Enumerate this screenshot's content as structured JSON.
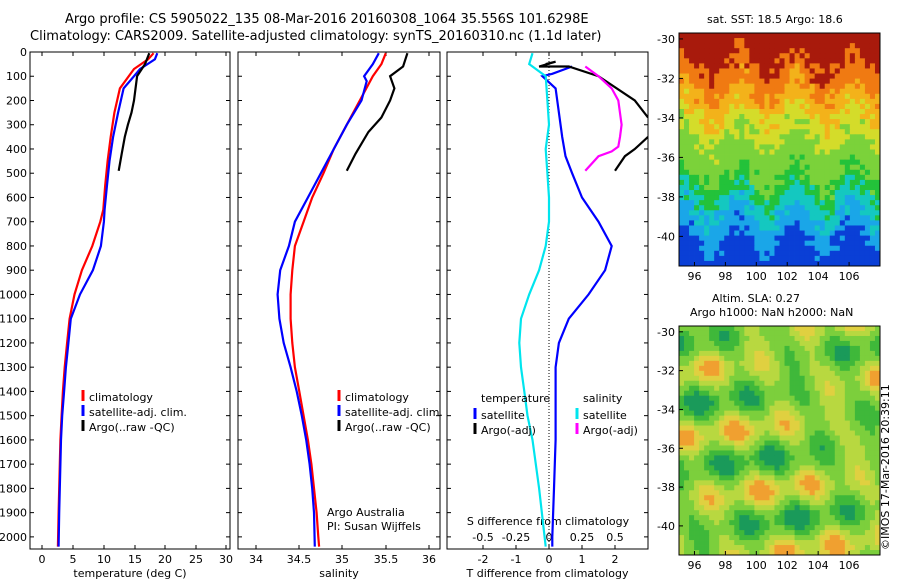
{
  "header": {
    "line1": "Argo profile: CS 5905022_135 08-Mar-2016 20160308_1064 35.556S 101.6298E",
    "line2": "Climatology: CARS2009. Satellite-adjusted climatology: synTS_20160310.nc (1.1d later)"
  },
  "colors": {
    "clim": "#ff0000",
    "sat": "#0000ff",
    "argo": "#000000",
    "cyan": "#00e5ee",
    "magenta": "#ff00ff"
  },
  "chart_data": [
    {
      "type": "line",
      "xlabel": "temperature (deg C)",
      "ylabel": "",
      "xlim": [
        0,
        31
      ],
      "ylim": [
        2050,
        0
      ],
      "xticks": [
        "0",
        "5",
        "10",
        "15",
        "20",
        "25",
        "30"
      ],
      "yticks": [
        "0",
        "100",
        "200",
        "300",
        "400",
        "500",
        "600",
        "700",
        "800",
        "900",
        "1000",
        "1100",
        "1200",
        "1300",
        "1400",
        "1500",
        "1600",
        "1700",
        "1800",
        "1900",
        "2000"
      ],
      "legend": [
        "climatology",
        "satellite-adj. clim.",
        "Argo(..raw -QC)"
      ],
      "series": [
        {
          "name": "climatology",
          "color": "clim",
          "x": [
            18.2,
            17.3,
            15.0,
            12.7,
            11.8,
            11.2,
            10.7,
            10.3,
            10.0,
            9.5,
            8.2,
            6.5,
            5.3,
            4.5,
            4.1,
            3.7,
            3.4,
            3.2,
            3.0,
            2.9,
            2.8,
            2.7,
            2.6
          ],
          "y": [
            5,
            30,
            70,
            150,
            250,
            350,
            450,
            550,
            650,
            700,
            800,
            900,
            1000,
            1100,
            1200,
            1300,
            1400,
            1500,
            1600,
            1700,
            1800,
            1900,
            2040
          ]
        },
        {
          "name": "satellite-adj. clim.",
          "color": "sat",
          "x": [
            18.8,
            18.4,
            16.0,
            13.3,
            12.4,
            11.6,
            11.0,
            10.6,
            10.2,
            10.1,
            9.6,
            8.3,
            6.2,
            4.7,
            4.3,
            3.9,
            3.6,
            3.3,
            3.1,
            3.0,
            2.9,
            2.8,
            2.7
          ],
          "y": [
            5,
            30,
            70,
            150,
            250,
            350,
            450,
            550,
            650,
            700,
            800,
            900,
            1000,
            1100,
            1200,
            1300,
            1400,
            1500,
            1600,
            1700,
            1800,
            1900,
            2040
          ]
        },
        {
          "name": "Argo(..raw -QC)",
          "color": "argo",
          "x": [
            17.5,
            16.8,
            15.5,
            15.0,
            14.6,
            14.0,
            13.5,
            13.0,
            12.5
          ],
          "y": [
            5,
            50,
            100,
            200,
            250,
            300,
            350,
            420,
            490
          ]
        }
      ]
    },
    {
      "type": "line",
      "xlabel": "salinity",
      "xlim": [
        33.8,
        36.1
      ],
      "ylim": [
        2050,
        0
      ],
      "xticks": [
        "34",
        "34.5",
        "35",
        "35.5",
        "36"
      ],
      "legend": [
        "climatology",
        "satellite-adj. clim.",
        "Argo(..raw -QC)"
      ],
      "annotation": [
        "Argo Australia",
        "PI: Susan Wijffels"
      ],
      "series": [
        {
          "name": "climatology",
          "color": "clim",
          "x": [
            35.5,
            35.45,
            35.35,
            35.2,
            35.05,
            34.9,
            34.78,
            34.65,
            34.55,
            34.45,
            34.42,
            34.4,
            34.4,
            34.42,
            34.45,
            34.5,
            34.55,
            34.6,
            34.64,
            34.67,
            34.7,
            34.72,
            34.73
          ],
          "y": [
            5,
            50,
            100,
            200,
            300,
            400,
            500,
            600,
            700,
            800,
            900,
            1000,
            1100,
            1200,
            1300,
            1400,
            1500,
            1600,
            1700,
            1800,
            1900,
            2000,
            2040
          ]
        },
        {
          "name": "satellite-adj. clim.",
          "color": "sat",
          "x": [
            35.42,
            35.35,
            35.25,
            35.28,
            35.22,
            35.05,
            34.9,
            34.75,
            34.6,
            34.45,
            34.38,
            34.28,
            34.25,
            34.27,
            34.32,
            34.4,
            34.47,
            34.53,
            34.58,
            34.62,
            34.65,
            34.67,
            34.68
          ],
          "y": [
            5,
            50,
            100,
            120,
            200,
            300,
            400,
            500,
            600,
            700,
            800,
            900,
            1000,
            1100,
            1200,
            1300,
            1400,
            1500,
            1600,
            1700,
            1800,
            1900,
            2040
          ]
        },
        {
          "name": "Argo(..raw -QC)",
          "color": "argo",
          "x": [
            35.75,
            35.7,
            35.55,
            35.6,
            35.55,
            35.45,
            35.3,
            35.15,
            35.05
          ],
          "y": [
            5,
            60,
            100,
            150,
            200,
            270,
            330,
            420,
            490
          ]
        }
      ]
    },
    {
      "type": "line",
      "xlabel": "T difference from climatology",
      "x2label": "S difference from climatology",
      "xlim": [
        -2.6,
        3.0
      ],
      "ylim": [
        2050,
        0
      ],
      "xticks": [
        "-2",
        "-1",
        "0",
        "1",
        "2"
      ],
      "x2ticks": [
        "-0.5",
        "-0.25",
        "0",
        "0.25",
        "0.5"
      ],
      "legend_temperature_title": "temperature",
      "legend_salinity_title": "salinity",
      "legend_temperature": [
        "satellite",
        "Argo(-adj)"
      ],
      "legend_salinity": [
        "satellite",
        "Argo(-adj)"
      ],
      "series": [
        {
          "name": "satellite",
          "group": "temperature",
          "color": "sat",
          "x": [
            0.7,
            0.1,
            -0.2,
            0.2,
            0.3,
            0.4,
            0.5,
            0.7,
            1.0,
            1.5,
            1.9,
            1.7,
            1.2,
            0.6,
            0.3,
            0.2,
            0.2,
            0.2,
            0.15,
            0.1,
            0.1
          ],
          "y": [
            60,
            90,
            100,
            150,
            250,
            350,
            430,
            500,
            600,
            700,
            800,
            900,
            1000,
            1100,
            1200,
            1300,
            1400,
            1600,
            1800,
            2000,
            2040
          ]
        },
        {
          "name": "satellite",
          "group": "salinity",
          "color": "cyan",
          "x": [
            -0.5,
            -0.6,
            -0.1,
            -0.05,
            0.0,
            -0.1,
            -0.05,
            0.0,
            0.0,
            -0.1,
            -0.3,
            -0.6,
            -0.85,
            -0.9,
            -0.85,
            -0.75,
            -0.65,
            -0.5,
            -0.3,
            -0.1
          ],
          "y": [
            5,
            50,
            100,
            200,
            300,
            400,
            500,
            600,
            700,
            800,
            900,
            1000,
            1100,
            1200,
            1300,
            1400,
            1500,
            1600,
            1800,
            2040
          ]
        },
        {
          "name": "Argo(-adj)",
          "group": "temperature",
          "color": "argo",
          "x": [
            -0.1,
            0.2,
            -0.3,
            0.6,
            1.5,
            2.6,
            3.0
          ],
          "y": [
            50,
            40,
            60,
            60,
            100,
            200,
            270
          ]
        },
        {
          "name": "Argo(-adj)",
          "group": "temperature",
          "color": "argo",
          "x": [
            3.0,
            2.6,
            2.3,
            2.0
          ],
          "y": [
            350,
            400,
            430,
            490
          ]
        },
        {
          "name": "Argo(-adj)",
          "group": "salinity",
          "color": "magenta",
          "x": [
            1.1,
            1.5,
            1.9,
            2.1,
            2.2,
            2.15,
            2.1,
            1.9,
            1.5,
            1.1
          ],
          "y": [
            60,
            100,
            150,
            200,
            300,
            350,
            390,
            410,
            430,
            490
          ]
        }
      ]
    },
    {
      "type": "heatmap",
      "title": "sat. SST: 18.5 Argo: 18.6",
      "xticks": [
        "96",
        "98",
        "100",
        "102",
        "104",
        "106"
      ],
      "yticks": [
        "-30",
        "-32",
        "-34",
        "-36",
        "-38",
        "-40"
      ],
      "xlim": [
        95,
        108
      ],
      "ylim": [
        -41.5,
        -29.7
      ]
    },
    {
      "type": "heatmap",
      "title_line1": "Altim. SLA: 0.27",
      "title_line2": "Argo h1000: NaN h2000: NaN",
      "xticks": [
        "96",
        "98",
        "100",
        "102",
        "104",
        "106"
      ],
      "yticks": [
        "-30",
        "-32",
        "-34",
        "-36",
        "-38",
        "-40"
      ],
      "xlim": [
        95,
        108
      ],
      "ylim": [
        -41.5,
        -29.7
      ]
    }
  ],
  "credit": "©IMOS 17-Mar-2016 20:39:11"
}
